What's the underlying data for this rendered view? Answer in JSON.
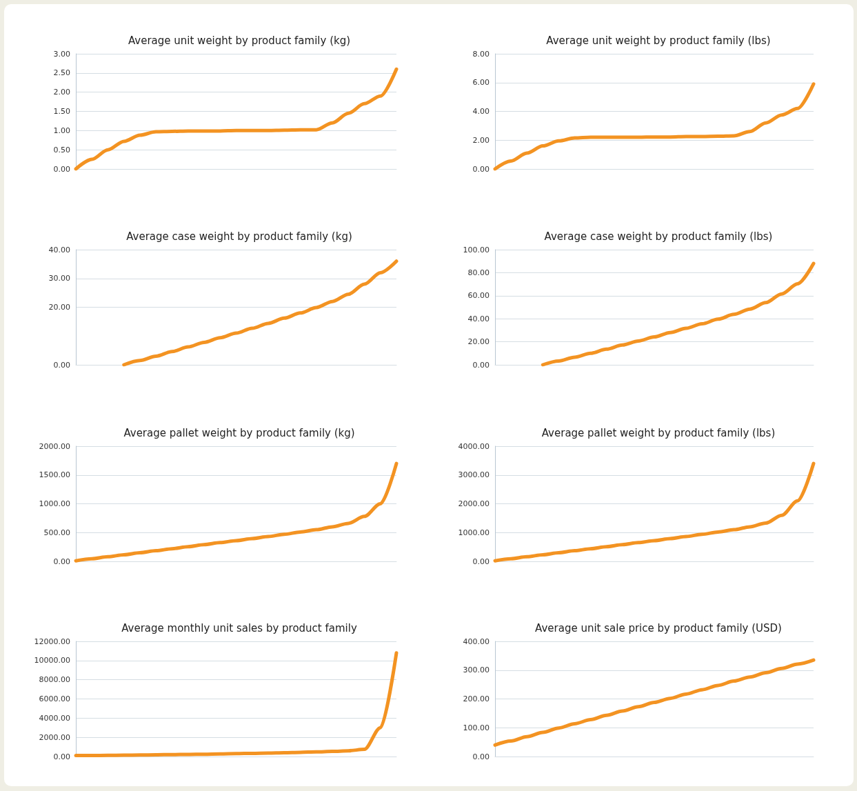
{
  "chart_data": [
    {
      "type": "line",
      "title": "Average unit weight by product family (kg)",
      "categories": [
        null,
        null,
        null,
        null,
        null,
        null,
        null,
        null,
        null,
        null,
        null,
        null,
        null,
        null,
        null,
        null,
        null,
        null,
        null,
        null,
        null
      ],
      "values": [
        0,
        0.25,
        0.5,
        0.72,
        0.88,
        0.97,
        0.98,
        0.99,
        0.99,
        0.99,
        1.0,
        1.0,
        1.0,
        1.01,
        1.02,
        1.02,
        1.2,
        1.45,
        1.7,
        1.9,
        2.6
      ],
      "color": "#f39322",
      "ylim": [
        0,
        3
      ],
      "yticks": [
        {
          "value": 0,
          "label": "0.00"
        },
        {
          "value": 0.5,
          "label": "0.50"
        },
        {
          "value": 1,
          "label": "1.00"
        },
        {
          "value": 1.5,
          "label": "1.50"
        },
        {
          "value": 2,
          "label": "2.00"
        },
        {
          "value": 2.5,
          "label": "2.50"
        },
        {
          "value": 3,
          "label": "3.00"
        }
      ],
      "grid": "y",
      "marker": "none",
      "tick_labels": "y"
    },
    {
      "type": "line",
      "title": "Average unit weight by product family (lbs)",
      "categories": [
        null,
        null,
        null,
        null,
        null,
        null,
        null,
        null,
        null,
        null,
        null,
        null,
        null,
        null,
        null,
        null,
        null,
        null,
        null,
        null,
        null
      ],
      "values": [
        0,
        0.55,
        1.1,
        1.6,
        1.95,
        2.15,
        2.2,
        2.2,
        2.2,
        2.2,
        2.22,
        2.22,
        2.25,
        2.25,
        2.27,
        2.3,
        2.6,
        3.2,
        3.75,
        4.2,
        5.9
      ],
      "color": "#f39322",
      "ylim": [
        0,
        8
      ],
      "yticks": [
        {
          "value": 0,
          "label": "0.00"
        },
        {
          "value": 2,
          "label": "2.00"
        },
        {
          "value": 4,
          "label": "4.00"
        },
        {
          "value": 6,
          "label": "6.00"
        },
        {
          "value": 8,
          "label": "8.00"
        }
      ],
      "grid": "y",
      "marker": "none",
      "tick_labels": "y"
    },
    {
      "type": "line",
      "title": "Average case weight by product family (kg)",
      "categories": [
        null,
        null,
        null,
        null,
        null,
        null,
        null,
        null,
        null,
        null,
        null,
        null,
        null,
        null,
        null,
        null,
        null,
        null,
        null,
        null,
        null
      ],
      "values": [
        null,
        null,
        null,
        0,
        1.5,
        3,
        4.6,
        6.2,
        7.8,
        9.4,
        11,
        12.7,
        14.4,
        16.2,
        18,
        19.9,
        22,
        24.5,
        28,
        32,
        36
      ],
      "color": "#f39322",
      "ylim": [
        0,
        40
      ],
      "yticks": [
        {
          "value": 0,
          "label": "0.00"
        },
        {
          "value": 20,
          "label": "20.00"
        },
        {
          "value": 30,
          "label": "30.00"
        },
        {
          "value": 40,
          "label": "40.00"
        }
      ],
      "grid": "y",
      "marker": "none",
      "tick_labels": "y"
    },
    {
      "type": "line",
      "title": "Average case weight by product family (lbs)",
      "categories": [
        null,
        null,
        null,
        null,
        null,
        null,
        null,
        null,
        null,
        null,
        null,
        null,
        null,
        null,
        null,
        null,
        null,
        null,
        null,
        null,
        null
      ],
      "values": [
        null,
        null,
        null,
        0,
        3.3,
        6.6,
        10,
        13.6,
        17.2,
        20.7,
        24.2,
        28,
        31.7,
        35.6,
        39.6,
        43.8,
        48.4,
        54,
        61.6,
        70.4,
        88
      ],
      "color": "#f39322",
      "ylim": [
        0,
        100
      ],
      "yticks": [
        {
          "value": 0,
          "label": "0.00"
        },
        {
          "value": 20,
          "label": "20.00"
        },
        {
          "value": 40,
          "label": "40.00"
        },
        {
          "value": 60,
          "label": "60.00"
        },
        {
          "value": 80,
          "label": "80.00"
        },
        {
          "value": 100,
          "label": "100.00"
        }
      ],
      "grid": "y",
      "marker": "none",
      "tick_labels": "y"
    },
    {
      "type": "line",
      "title": "Average pallet weight by product family (kg)",
      "categories": [
        null,
        null,
        null,
        null,
        null,
        null,
        null,
        null,
        null,
        null,
        null,
        null,
        null,
        null,
        null,
        null,
        null,
        null,
        null,
        null,
        null
      ],
      "values": [
        10,
        45,
        80,
        115,
        150,
        185,
        220,
        255,
        290,
        325,
        360,
        395,
        430,
        470,
        510,
        550,
        600,
        660,
        780,
        1000,
        1700
      ],
      "color": "#f39322",
      "ylim": [
        0,
        2000
      ],
      "yticks": [
        {
          "value": 0,
          "label": "0.00"
        },
        {
          "value": 500,
          "label": "500.00"
        },
        {
          "value": 1000,
          "label": "1000.00"
        },
        {
          "value": 1500,
          "label": "1500.00"
        },
        {
          "value": 2000,
          "label": "2000.00"
        }
      ],
      "grid": "y",
      "marker": "none",
      "tick_labels": "y"
    },
    {
      "type": "line",
      "title": "Average pallet weight by product family (lbs)",
      "categories": [
        null,
        null,
        null,
        null,
        null,
        null,
        null,
        null,
        null,
        null,
        null,
        null,
        null,
        null,
        null,
        null,
        null,
        null,
        null,
        null,
        null
      ],
      "values": [
        20,
        90,
        160,
        230,
        300,
        370,
        440,
        510,
        580,
        650,
        720,
        790,
        860,
        940,
        1020,
        1100,
        1200,
        1330,
        1600,
        2100,
        3400
      ],
      "color": "#f39322",
      "ylim": [
        0,
        4000
      ],
      "yticks": [
        {
          "value": 0,
          "label": "0.00"
        },
        {
          "value": 1000,
          "label": "1000.00"
        },
        {
          "value": 2000,
          "label": "2000.00"
        },
        {
          "value": 3000,
          "label": "3000.00"
        },
        {
          "value": 4000,
          "label": "4000.00"
        }
      ],
      "grid": "y",
      "marker": "none",
      "tick_labels": "y"
    },
    {
      "type": "line",
      "title": "Average monthly unit sales by product family",
      "categories": [
        null,
        null,
        null,
        null,
        null,
        null,
        null,
        null,
        null,
        null,
        null,
        null,
        null,
        null,
        null,
        null,
        null,
        null,
        null,
        null,
        null
      ],
      "values": [
        100,
        110,
        120,
        140,
        160,
        180,
        200,
        220,
        240,
        270,
        300,
        330,
        360,
        400,
        440,
        480,
        530,
        600,
        750,
        3000,
        10800
      ],
      "color": "#f39322",
      "ylim": [
        0,
        12000
      ],
      "yticks": [
        {
          "value": 0,
          "label": "0.00"
        },
        {
          "value": 2000,
          "label": "2000.00"
        },
        {
          "value": 4000,
          "label": "4000.00"
        },
        {
          "value": 6000,
          "label": "6000.00"
        },
        {
          "value": 8000,
          "label": "8000.00"
        },
        {
          "value": 10000,
          "label": "10000.00"
        },
        {
          "value": 12000,
          "label": "12000.00"
        }
      ],
      "grid": "y",
      "marker": "none",
      "tick_labels": "y"
    },
    {
      "type": "line",
      "title": "Average unit sale price by product family (USD)",
      "categories": [
        null,
        null,
        null,
        null,
        null,
        null,
        null,
        null,
        null,
        null,
        null,
        null,
        null,
        null,
        null,
        null,
        null,
        null,
        null,
        null,
        null
      ],
      "values": [
        40,
        54,
        69,
        84,
        99,
        114,
        128,
        143,
        158,
        173,
        188,
        202,
        217,
        232,
        247,
        262,
        276,
        291,
        306,
        321,
        335
      ],
      "color": "#f39322",
      "ylim": [
        0,
        400
      ],
      "yticks": [
        {
          "value": 0,
          "label": "0.00"
        },
        {
          "value": 100,
          "label": "100.00"
        },
        {
          "value": 200,
          "label": "200.00"
        },
        {
          "value": 300,
          "label": "300.00"
        },
        {
          "value": 400,
          "label": "400.00"
        }
      ],
      "grid": "y",
      "marker": "none",
      "tick_labels": "y"
    }
  ]
}
